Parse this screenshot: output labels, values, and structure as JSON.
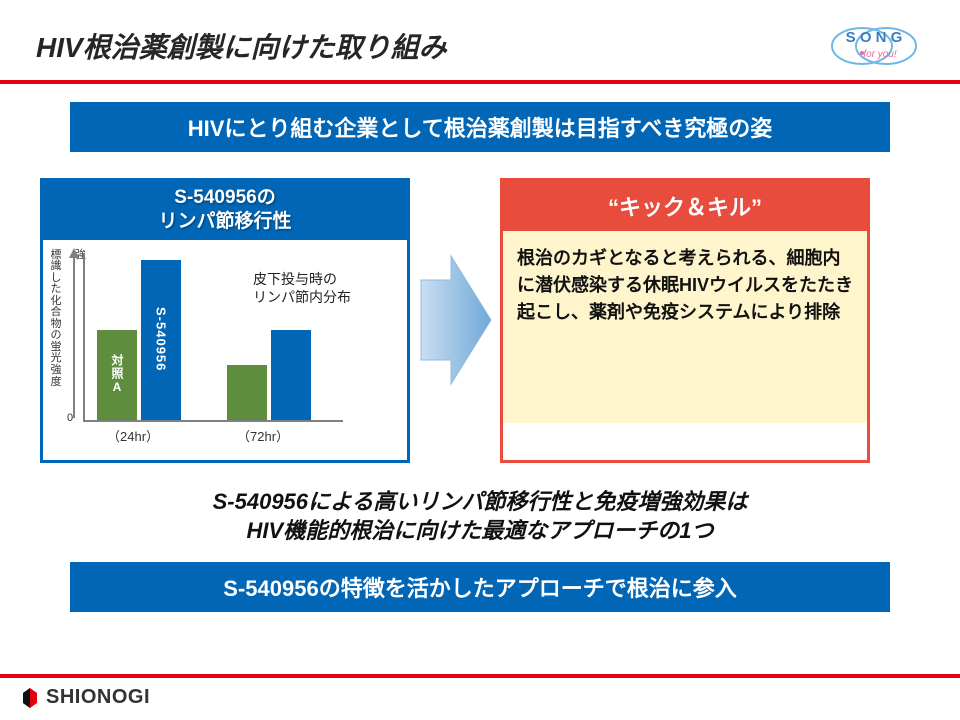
{
  "header": {
    "title": "HIV根治薬創製に向けた取り組み",
    "song_logo": {
      "text_top": "S O N G",
      "text_sub": "for you!",
      "stroke": "#6fb8e6",
      "text_color": "#3a7fbf",
      "accent": "#e66aa0"
    }
  },
  "banner1": "HIVにとり組む企業として根治薬創製は目指すべき究極の姿",
  "chart_card": {
    "title_line1": "S-540956の",
    "title_line2": "リンパ節移行性",
    "y_axis_label": "標識した化合物の蛍光強度",
    "y_top_label": "強",
    "y_zero_label": "0",
    "note_line1": "皮下投与時の",
    "note_line2": "リンパ節内分布",
    "groups": [
      {
        "x_label": "（24hr）",
        "bars": [
          {
            "label": "対照A",
            "value": 90,
            "color": "#5f8d3e",
            "label_mode": "vert"
          },
          {
            "label": "S-540956",
            "value": 160,
            "color": "#0066b5",
            "label_mode": "sbs"
          }
        ]
      },
      {
        "x_label": "（72hr）",
        "bars": [
          {
            "label": "",
            "value": 55,
            "color": "#5f8d3e",
            "label_mode": "none"
          },
          {
            "label": "",
            "value": 90,
            "color": "#0066b5",
            "label_mode": "none"
          }
        ]
      }
    ],
    "axis_color": "#808080",
    "border_color": "#0066b5"
  },
  "arrow": {
    "fill_start": "#c9def2",
    "fill_end": "#6fa8d8",
    "stroke": "#8fb9df"
  },
  "kick_card": {
    "title": "“キック＆キル”",
    "body": "根治のカギとなると考えられる、細胞内に潜伏感染する休眠HIVウイルスをたたき起こし、薬剤や免疫システムにより排除",
    "border_color": "#e84c3d",
    "body_bg": "#fff5cc"
  },
  "summary_line1": "S-540956による高いリンパ節移行性と免疫増強効果は",
  "summary_line2": "HIV機能的根治に向けた最適なアプローチの1つ",
  "banner2": "S-540956の特徴を活かしたアプローチで根治に参入",
  "footer": {
    "brand": "SHIONOGI",
    "accent": "#e60012"
  }
}
